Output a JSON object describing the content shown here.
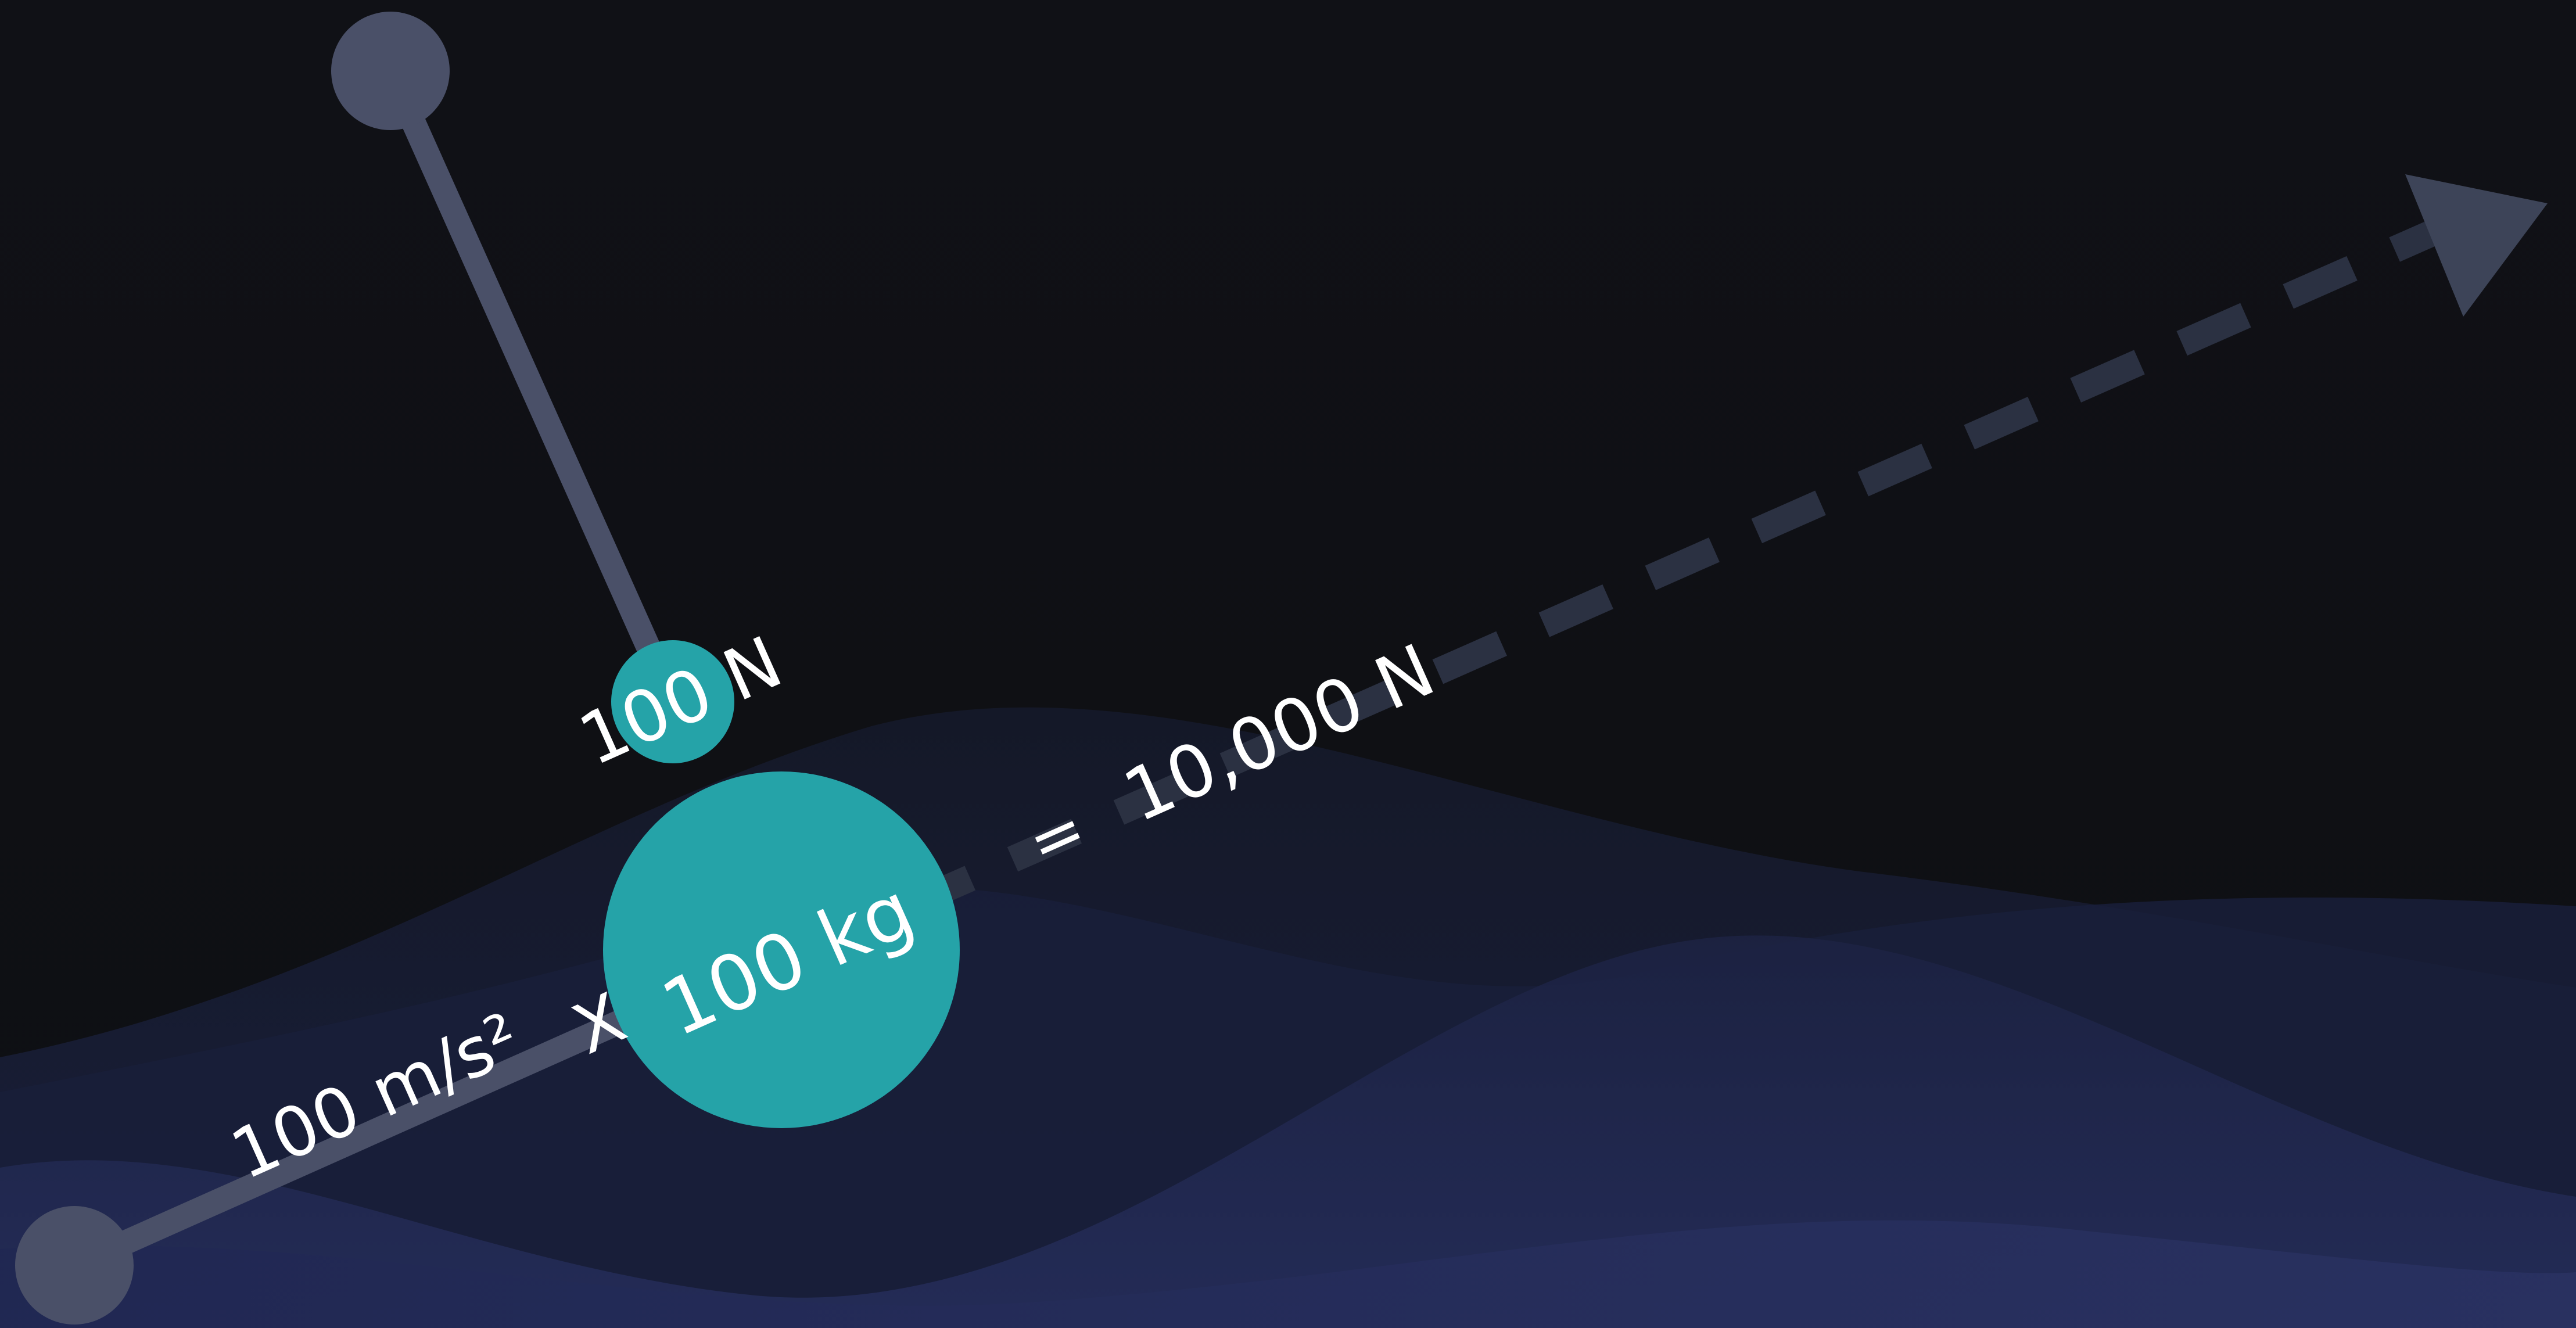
{
  "diagram": {
    "mass_label": "100 kg",
    "small_force_label": "100 N",
    "acceleration_label": "100 m/s²",
    "multiply_sign": "X",
    "equals_sign": "=",
    "result_label": "10,000 N"
  },
  "colors": {
    "background": "#0f1014",
    "wave_dark": "#141a2e",
    "wave_mid": "#1a2140",
    "wave_light": "#242c52",
    "line_gray": "#4a5068",
    "arrow_dashed": "#2b3142",
    "arrow_head": "#3d4458",
    "teal": "#25a3a8",
    "text": "#ffffff"
  }
}
